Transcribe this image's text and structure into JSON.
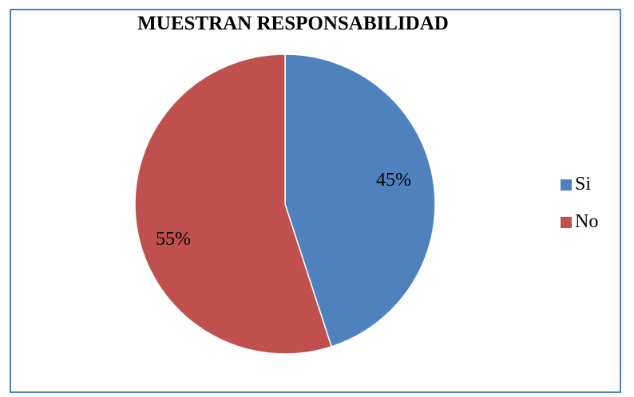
{
  "chart_data": {
    "type": "pie",
    "title": "MUESTRAN RESPONSABILIDAD",
    "categories": [
      "Si",
      "No"
    ],
    "values": [
      45,
      55
    ],
    "data_labels": [
      "45%",
      "55%"
    ],
    "colors": [
      "#4f81bd",
      "#c0504d"
    ],
    "legend_position": "right"
  }
}
